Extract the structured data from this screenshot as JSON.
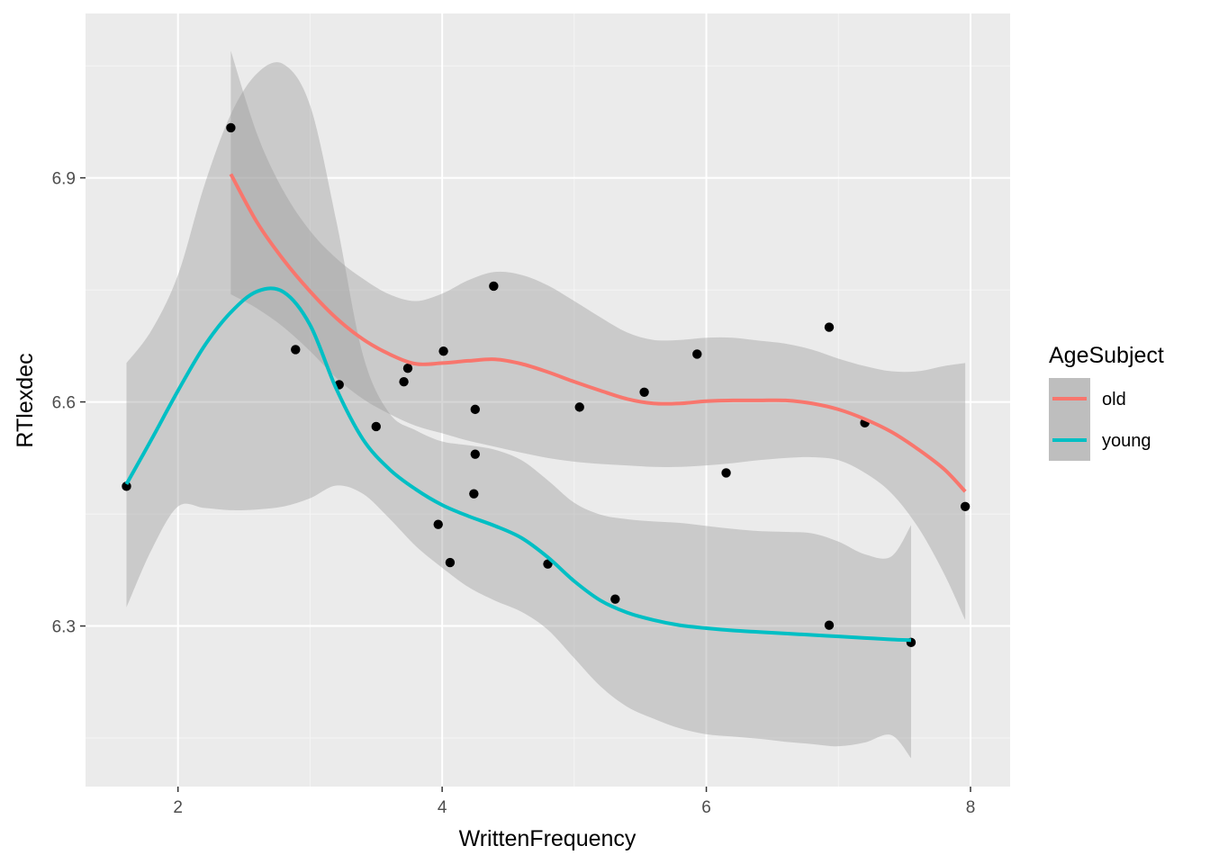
{
  "chart_data": {
    "type": "scatter",
    "title": "",
    "xlabel": "WrittenFrequency",
    "ylabel": "RTlexdec",
    "xlim": [
      1.3,
      8.3
    ],
    "ylim": [
      6.085,
      7.12
    ],
    "x_ticks": [
      2,
      4,
      6,
      8
    ],
    "x_tick_labels": [
      "2",
      "4",
      "6",
      "8"
    ],
    "y_ticks": [
      6.3,
      6.6,
      6.9
    ],
    "y_tick_labels": [
      "6.3",
      "6.6",
      "6.9"
    ],
    "grid": true,
    "legend": {
      "title": "AgeSubject",
      "position": "right"
    },
    "points": [
      {
        "x": 1.61,
        "y": 6.487
      },
      {
        "x": 2.4,
        "y": 6.967
      },
      {
        "x": 2.89,
        "y": 6.67
      },
      {
        "x": 3.22,
        "y": 6.623
      },
      {
        "x": 3.5,
        "y": 6.567
      },
      {
        "x": 3.71,
        "y": 6.627
      },
      {
        "x": 3.74,
        "y": 6.645
      },
      {
        "x": 3.97,
        "y": 6.436
      },
      {
        "x": 4.01,
        "y": 6.668
      },
      {
        "x": 4.06,
        "y": 6.385
      },
      {
        "x": 4.24,
        "y": 6.477
      },
      {
        "x": 4.25,
        "y": 6.59
      },
      {
        "x": 4.25,
        "y": 6.53
      },
      {
        "x": 4.39,
        "y": 6.755
      },
      {
        "x": 4.8,
        "y": 6.383
      },
      {
        "x": 5.04,
        "y": 6.593
      },
      {
        "x": 5.31,
        "y": 6.336
      },
      {
        "x": 5.53,
        "y": 6.613
      },
      {
        "x": 5.93,
        "y": 6.664
      },
      {
        "x": 6.15,
        "y": 6.505
      },
      {
        "x": 6.93,
        "y": 6.7
      },
      {
        "x": 6.93,
        "y": 6.301
      },
      {
        "x": 7.2,
        "y": 6.572
      },
      {
        "x": 7.55,
        "y": 6.278
      },
      {
        "x": 7.96,
        "y": 6.46
      }
    ],
    "series": [
      {
        "name": "old",
        "color": "#F8766D",
        "x": [
          2.4,
          2.6,
          2.8,
          3.0,
          3.2,
          3.4,
          3.6,
          3.8,
          4.0,
          4.2,
          4.4,
          4.6,
          4.8,
          5.0,
          5.2,
          5.4,
          5.6,
          5.8,
          6.0,
          6.2,
          6.4,
          6.6,
          6.8,
          7.0,
          7.2,
          7.4,
          7.6,
          7.8,
          7.96
        ],
        "y": [
          6.905,
          6.84,
          6.79,
          6.748,
          6.712,
          6.684,
          6.664,
          6.651,
          6.652,
          6.655,
          6.657,
          6.651,
          6.64,
          6.627,
          6.615,
          6.604,
          6.598,
          6.598,
          6.601,
          6.602,
          6.602,
          6.602,
          6.598,
          6.59,
          6.577,
          6.56,
          6.537,
          6.51,
          6.48
        ],
        "ci_low": [
          6.744,
          6.725,
          6.7,
          6.668,
          6.632,
          6.604,
          6.584,
          6.568,
          6.558,
          6.548,
          6.54,
          6.532,
          6.525,
          6.52,
          6.517,
          6.515,
          6.513,
          6.513,
          6.515,
          6.518,
          6.522,
          6.525,
          6.526,
          6.522,
          6.505,
          6.478,
          6.433,
          6.37,
          6.308
        ],
        "ci_high": [
          7.07,
          6.958,
          6.882,
          6.829,
          6.792,
          6.765,
          6.744,
          6.735,
          6.745,
          6.763,
          6.774,
          6.77,
          6.756,
          6.735,
          6.713,
          6.693,
          6.683,
          6.683,
          6.686,
          6.686,
          6.682,
          6.678,
          6.67,
          6.658,
          6.648,
          6.641,
          6.641,
          6.648,
          6.652
        ]
      },
      {
        "name": "young",
        "color": "#00BFC4",
        "x": [
          1.61,
          1.8,
          2.0,
          2.2,
          2.4,
          2.6,
          2.8,
          3.0,
          3.2,
          3.4,
          3.6,
          3.8,
          4.0,
          4.2,
          4.4,
          4.6,
          4.8,
          5.0,
          5.2,
          5.4,
          5.6,
          5.8,
          6.0,
          6.2,
          6.4,
          6.6,
          6.8,
          7.0,
          7.2,
          7.4,
          7.55
        ],
        "y": [
          6.49,
          6.55,
          6.615,
          6.675,
          6.72,
          6.748,
          6.747,
          6.703,
          6.617,
          6.55,
          6.51,
          6.483,
          6.462,
          6.447,
          6.434,
          6.418,
          6.392,
          6.36,
          6.334,
          6.318,
          6.308,
          6.301,
          6.297,
          6.294,
          6.292,
          6.29,
          6.288,
          6.286,
          6.284,
          6.282,
          6.281
        ],
        "ci_low": [
          6.325,
          6.402,
          6.46,
          6.458,
          6.455,
          6.456,
          6.46,
          6.471,
          6.488,
          6.477,
          6.444,
          6.407,
          6.378,
          6.352,
          6.334,
          6.319,
          6.295,
          6.257,
          6.219,
          6.192,
          6.176,
          6.163,
          6.155,
          6.152,
          6.149,
          6.145,
          6.142,
          6.139,
          6.144,
          6.154,
          6.123
        ],
        "ci_high": [
          6.652,
          6.696,
          6.77,
          6.89,
          6.985,
          7.04,
          7.052,
          6.997,
          6.841,
          6.663,
          6.585,
          6.562,
          6.547,
          6.542,
          6.536,
          6.522,
          6.495,
          6.465,
          6.449,
          6.443,
          6.44,
          6.438,
          6.434,
          6.43,
          6.427,
          6.426,
          6.424,
          6.413,
          6.396,
          6.393,
          6.435
        ]
      }
    ]
  }
}
